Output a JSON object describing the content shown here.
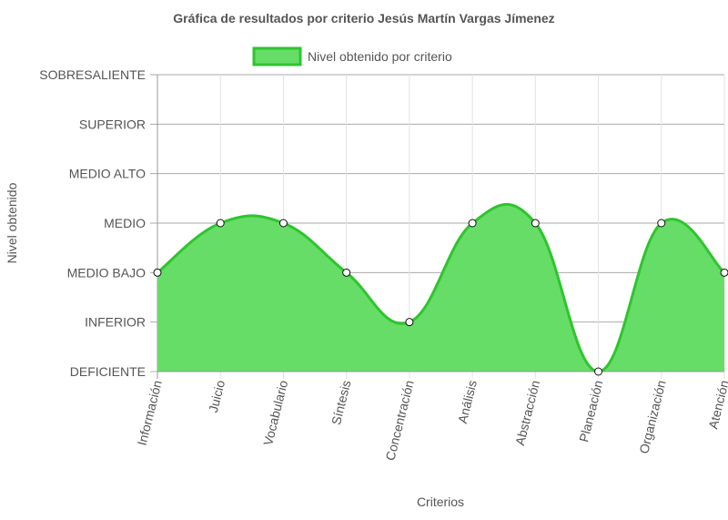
{
  "chart_data": {
    "type": "area",
    "title": "Gráfica de resultados por criterio Jesús Martín Vargas Jímenez",
    "xlabel": "Criterios",
    "ylabel": "Nivel obtenido",
    "legend_position": "top",
    "grid": true,
    "levels": [
      "DEFICIENTE",
      "INFERIOR",
      "MEDIO BAJO",
      "MEDIO",
      "MEDIO ALTO",
      "SUPERIOR",
      "SOBRESALIENTE"
    ],
    "ylim": [
      0,
      6
    ],
    "categories": [
      "Información",
      "Juicio",
      "Vocabulario",
      "Síntesis",
      "Concentración",
      "Análisis",
      "Abstracción",
      "Planeación",
      "Organización",
      "Atención"
    ],
    "series": [
      {
        "name": "Nivel obtenido por criterio",
        "values": [
          2,
          3,
          3,
          2,
          1,
          3,
          3,
          0,
          3,
          2
        ],
        "color": "#2ec52e",
        "fill": "#66dd66"
      }
    ]
  }
}
